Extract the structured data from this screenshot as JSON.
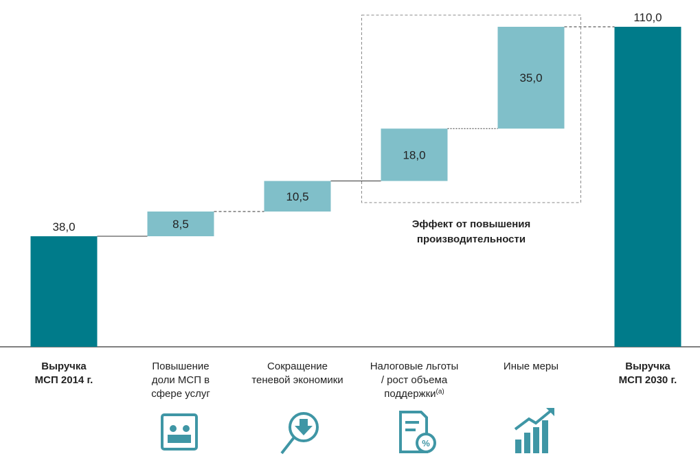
{
  "chart_data": {
    "type": "waterfall",
    "categories": [
      "Выручка\nМСП 2014 г.",
      "Повышение\nдоли МСП в\nсфере услуг",
      "Сокращение\nтеневой экономики",
      "Налоговые льготы\n/ рост объема\nподдержки",
      "Иные меры",
      "Выручка\nМСП 2030 г."
    ],
    "category_notes": [
      null,
      null,
      null,
      "(a)",
      null,
      null
    ],
    "values": [
      38.0,
      8.5,
      10.5,
      18.0,
      35.0,
      110.0
    ],
    "value_labels": [
      "38,0",
      "8,5",
      "10,5",
      "18,0",
      "35,0",
      "110,0"
    ],
    "measures": [
      "absolute",
      "relative",
      "relative",
      "relative",
      "relative",
      "total"
    ],
    "colors": {
      "absolute": "#007b8a",
      "relative": "#80bfc9",
      "total": "#007b8a"
    },
    "ylim": [
      0,
      110
    ],
    "group": {
      "label": "Эффект от повышения\nпроизводительности",
      "categories": [
        3,
        4
      ]
    }
  }
}
